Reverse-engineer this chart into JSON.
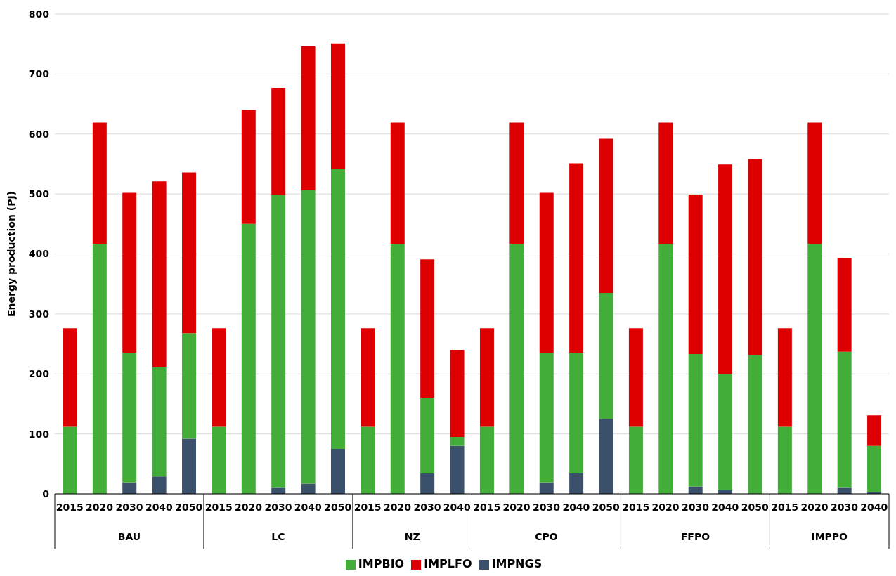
{
  "chart_data": {
    "type": "bar",
    "stacked": true,
    "ylabel": "Energy production (PJ)",
    "categories": [
      "2015",
      "2020",
      "2030",
      "2040",
      "2050",
      "2015",
      "2020",
      "2030",
      "2040",
      "2050",
      "2015",
      "2020",
      "2030",
      "2040",
      "2015",
      "2020",
      "2030",
      "2040",
      "2050",
      "2015",
      "2020",
      "2030",
      "2040",
      "2050",
      "2015",
      "2020",
      "2030",
      "2040"
    ],
    "annotations": [
      "BAU",
      "LC",
      "NZ",
      "CPO",
      "FFPO",
      "IMPPO"
    ],
    "series": [
      {
        "name": "IMPNGS",
        "color": "#3a506b",
        "values": [
          0,
          0,
          19,
          29,
          92,
          0,
          0,
          10,
          17,
          75,
          0,
          0,
          34,
          80,
          0,
          0,
          19,
          34,
          125,
          0,
          0,
          12,
          6,
          0,
          0,
          0,
          10,
          3
        ]
      },
      {
        "name": "IMPBIO",
        "color": "#43ad3a",
        "values": [
          112,
          417,
          216,
          182,
          176,
          112,
          450,
          489,
          489,
          466,
          112,
          417,
          126,
          15,
          112,
          417,
          216,
          201,
          210,
          112,
          417,
          221,
          194,
          231,
          112,
          417,
          227,
          77
        ]
      },
      {
        "name": "IMPLFO",
        "color": "#de0000",
        "values": [
          164,
          202,
          267,
          310,
          268,
          164,
          190,
          178,
          240,
          210,
          164,
          202,
          231,
          145,
          164,
          202,
          267,
          316,
          257,
          164,
          202,
          266,
          349,
          327,
          164,
          202,
          156,
          51
        ]
      }
    ],
    "ylim": [
      0,
      800
    ],
    "yticks": [
      0,
      100,
      200,
      300,
      400,
      500,
      600,
      700,
      800
    ],
    "grid": "y",
    "legend": "bottom"
  }
}
